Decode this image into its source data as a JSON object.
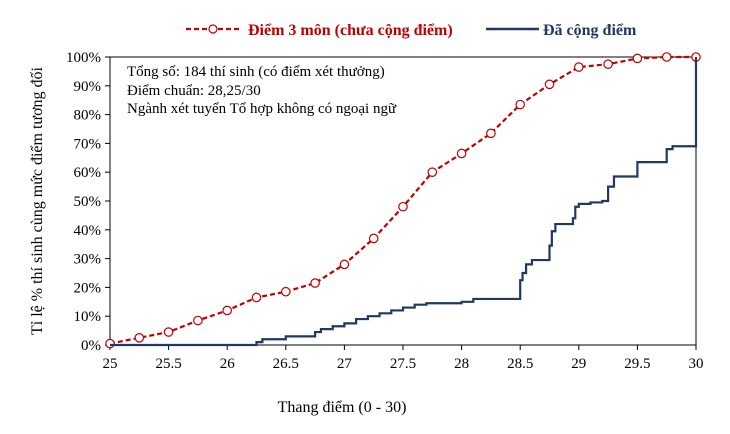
{
  "chart_data": {
    "type": "line",
    "title": "",
    "xlabel": "Thang điểm (0 - 30)",
    "ylabel": "Tỉ lệ % thí sinh cùng mức điểm tương đối",
    "xlim": [
      25,
      30
    ],
    "ylim": [
      0,
      100
    ],
    "x_ticks": [
      25,
      25.5,
      26,
      26.5,
      27,
      27.5,
      28,
      28.5,
      29,
      29.5,
      30
    ],
    "x_tick_labels": [
      "25",
      "25.5",
      "26",
      "26.5",
      "27",
      "27.5",
      "28",
      "28.5",
      "29",
      "29.5",
      "30"
    ],
    "y_ticks": [
      0,
      10,
      20,
      30,
      40,
      50,
      60,
      70,
      80,
      90,
      100
    ],
    "y_tick_labels": [
      "0%",
      "10%",
      "20%",
      "30%",
      "40%",
      "50%",
      "60%",
      "70%",
      "80%",
      "90%",
      "100%"
    ],
    "grid": false,
    "legend_position": "top",
    "annotations": [
      "Tổng số: 184 thí sinh  (có điểm xét thưởng)",
      "Điểm chuẩn: 28,25/30",
      "Ngành xét tuyển Tổ hợp không có ngoại ngữ"
    ],
    "series": [
      {
        "name": "Điểm 3 môn (chưa cộng điểm)",
        "style": "dashed-circles",
        "color": "#C00000",
        "x": [
          25,
          25.25,
          25.5,
          25.75,
          26,
          26.25,
          26.5,
          26.75,
          27,
          27.25,
          27.5,
          27.75,
          28,
          28.25,
          28.5,
          28.75,
          29,
          29.25,
          29.5,
          29.75,
          30
        ],
        "y": [
          0.5,
          2.5,
          4.5,
          8.5,
          12,
          16.5,
          18.5,
          21.5,
          28,
          37,
          48,
          60,
          66.5,
          73.5,
          83.5,
          90.5,
          96.5,
          97.5,
          99.5,
          100,
          100
        ]
      },
      {
        "name": "Đã cộng điểm",
        "style": "step",
        "color": "#1F3864",
        "x": [
          25,
          26.25,
          26.3,
          26.5,
          26.75,
          26.8,
          26.9,
          27,
          27.1,
          27.2,
          27.3,
          27.4,
          27.5,
          27.6,
          27.7,
          28,
          28.1,
          28.5,
          28.52,
          28.55,
          28.6,
          28.75,
          28.77,
          28.8,
          28.95,
          28.97,
          29,
          29.1,
          29.2,
          29.25,
          29.3,
          29.5,
          29.75,
          29.8,
          29.98,
          30
        ],
        "y": [
          0,
          1,
          2,
          3,
          4.5,
          5.5,
          6.5,
          7.5,
          9,
          10,
          11,
          12,
          13,
          14,
          14.5,
          15,
          16,
          22.5,
          25,
          28,
          29.5,
          34.5,
          39.5,
          42,
          44,
          48,
          49,
          49.5,
          50,
          55,
          58.5,
          63.5,
          68,
          69,
          69,
          100
        ]
      }
    ]
  }
}
